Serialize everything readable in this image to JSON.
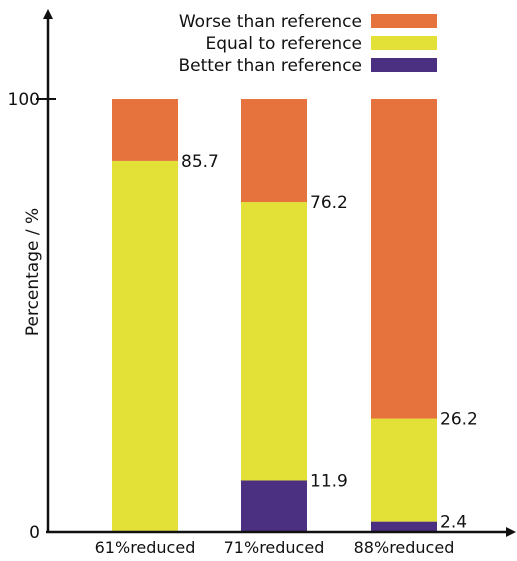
{
  "chart_data": {
    "type": "bar",
    "stacked": true,
    "categories": [
      "61%reduced",
      "71%reduced",
      "88%reduced"
    ],
    "series": [
      {
        "name": "Better than reference",
        "color": "#4b2f80",
        "values": [
          0,
          11.9,
          2.4
        ]
      },
      {
        "name": "Equal to reference",
        "color": "#e3e038",
        "values": [
          85.7,
          64.3,
          23.8
        ]
      },
      {
        "name": "Worse than reference",
        "color": "#e6733d",
        "values": [
          14.3,
          23.8,
          73.8
        ]
      }
    ],
    "cumulative_labels": [
      [
        "",
        "85.7"
      ],
      [
        "11.9",
        "76.2"
      ],
      [
        "2.4",
        "26.2"
      ]
    ],
    "legend_order": [
      "Worse than reference",
      "Equal to reference",
      "Better than reference"
    ],
    "legend_position": "top-right",
    "ylabel": "Percentage / %",
    "yticks": [
      0,
      100
    ],
    "ylim": [
      0,
      100
    ],
    "grid": false
  }
}
